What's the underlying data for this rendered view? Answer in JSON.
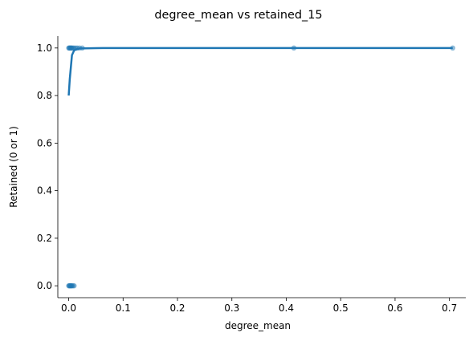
{
  "chart_data": {
    "type": "scatter",
    "title": "degree_mean vs retained_15",
    "xlabel": "degree_mean",
    "ylabel": "Retained (0 or 1)",
    "xlim": [
      -0.02,
      0.73
    ],
    "ylim": [
      -0.05,
      1.05
    ],
    "xticks": [
      "0.0",
      "0.1",
      "0.2",
      "0.3",
      "0.4",
      "0.5",
      "0.6",
      "0.7"
    ],
    "yticks": [
      "0.0",
      "0.2",
      "0.4",
      "0.6",
      "0.8",
      "1.0"
    ],
    "grid": false,
    "legend": "none",
    "series": [
      {
        "kind": "points",
        "color": "#1f77b4",
        "x": [
          0.0,
          0.001,
          0.002,
          0.003,
          0.004,
          0.005,
          0.006,
          0.008,
          0.01,
          0.013,
          0.016,
          0.02,
          0.025,
          0.414,
          0.706,
          0.0,
          0.001,
          0.002,
          0.003,
          0.004,
          0.005,
          0.006,
          0.008,
          0.01
        ],
        "y": [
          1,
          1,
          1,
          1,
          1,
          1,
          1,
          1,
          1,
          1,
          1,
          1,
          1,
          1,
          1,
          0,
          0,
          0,
          0,
          0,
          0,
          0,
          0,
          0
        ]
      },
      {
        "kind": "fit-line",
        "color": "#1f77b4",
        "x": [
          0.0,
          0.002,
          0.004,
          0.006,
          0.008,
          0.01,
          0.015,
          0.02,
          0.05,
          0.1,
          0.2,
          0.4,
          0.706
        ],
        "y": [
          0.8,
          0.87,
          0.92,
          0.97,
          0.98,
          0.99,
          0.995,
          0.998,
          0.9995,
          1.0,
          1.0,
          1.0,
          1.0
        ]
      }
    ]
  }
}
